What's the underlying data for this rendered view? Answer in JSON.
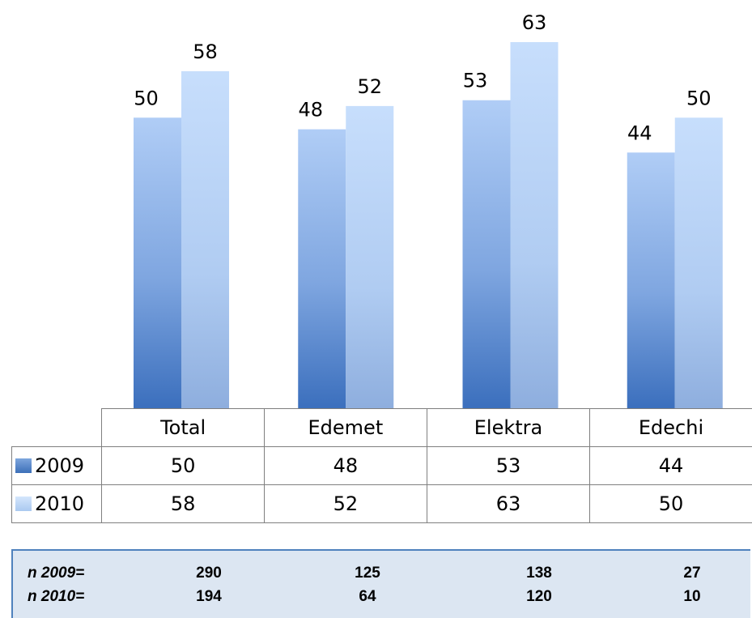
{
  "chart_data": {
    "type": "bar",
    "categories": [
      "Total",
      "Edemet",
      "Elektra",
      "Edechi"
    ],
    "series": [
      {
        "name": "2009",
        "values": [
          50,
          48,
          53,
          44
        ],
        "color": "#4f81bd"
      },
      {
        "name": "2010",
        "values": [
          58,
          52,
          63,
          50
        ],
        "color": "#b9d3f5"
      }
    ],
    "title": "",
    "xlabel": "",
    "ylabel": "",
    "ylim": [
      0,
      63
    ],
    "grid": false,
    "legend": "data-table"
  },
  "sample_sizes": {
    "rows": [
      {
        "label": "n 2009=",
        "values": [
          "290",
          "125",
          "138",
          "27"
        ]
      },
      {
        "label": "n 2010=",
        "values": [
          "194",
          "64",
          "120",
          "10"
        ]
      }
    ]
  }
}
